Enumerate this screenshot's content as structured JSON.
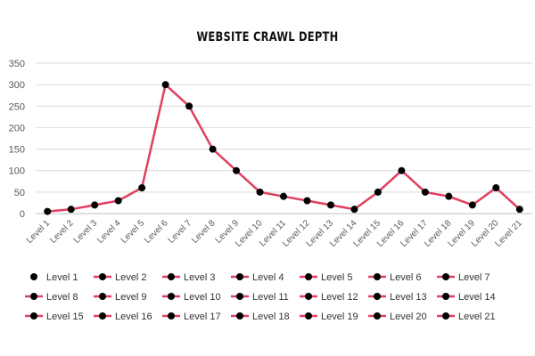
{
  "chart_data": {
    "type": "line",
    "title": "WEBSITE CRAWL DEPTH",
    "xlabel": "",
    "ylabel": "",
    "categories": [
      "Level 1",
      "Level 2",
      "Level 3",
      "Level 4",
      "Level 5",
      "Level 6",
      "Level 7",
      "Level 8",
      "Level 9",
      "Level 10",
      "Level 11",
      "Level 12",
      "Level 13",
      "Level 14",
      "Level 15",
      "Level 16",
      "Level 17",
      "Level 18",
      "Level 19",
      "Level 20",
      "Level 21"
    ],
    "values": [
      5,
      10,
      20,
      30,
      60,
      300,
      250,
      150,
      100,
      50,
      40,
      30,
      20,
      10,
      50,
      100,
      50,
      40,
      20,
      60,
      10
    ],
    "ylim": [
      0,
      350
    ],
    "yticks": [
      0,
      50,
      100,
      150,
      200,
      250,
      300,
      350
    ],
    "grid": true,
    "legend_position": "bottom",
    "colors": {
      "line": "#e0405e",
      "marker": "#000000",
      "grid": "#d9d9d9",
      "axis": "#bfbfbf"
    }
  }
}
